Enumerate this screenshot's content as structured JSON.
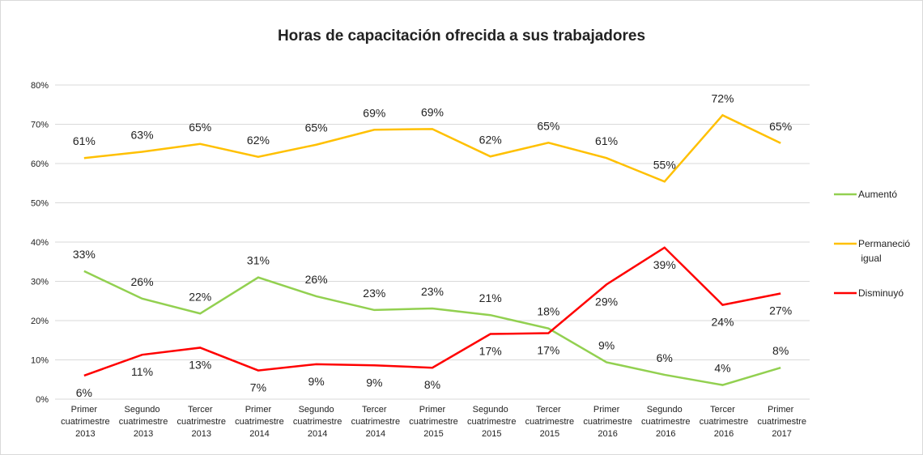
{
  "chart_data": {
    "type": "line",
    "title": "Horas de capacitación ofrecida a sus trabajadores",
    "categories": [
      "Primer cuatrimestre 2013",
      "Segundo cuatrimestre 2013",
      "Tercer cuatrimestre 2013",
      "Primer cuatrimestre 2014",
      "Segundo cuatrimestre 2014",
      "Tercer cuatrimestre 2014",
      "Primer cuatrimestre 2015",
      "Segundo cuatrimestre 2015",
      "Tercer cuatrimestre 2015",
      "Primer cuatrimestre 2016",
      "Segundo cuatrimestre 2016",
      "Tercer cuatrimestre 2016",
      "Primer cuatrimestre 2017"
    ],
    "series": [
      {
        "name": "Aumentó",
        "color": "#92d050",
        "values": [
          32.6,
          25.6,
          21.8,
          31,
          26.2,
          22.7,
          23.1,
          21.4,
          18,
          9.4,
          6.2,
          3.6,
          8
        ],
        "value_labels": [
          "33%",
          "26%",
          "22%",
          "31%",
          "26%",
          "23%",
          "23%",
          "21%",
          "18%",
          "9%",
          "6%",
          "4%",
          "8%"
        ]
      },
      {
        "name": "Permaneció igual",
        "color": "#ffc000",
        "values": [
          61.4,
          63,
          65,
          61.7,
          64.8,
          68.6,
          68.8,
          61.8,
          65.3,
          61.4,
          55.4,
          72.3,
          65.2
        ],
        "value_labels": [
          "61%",
          "63%",
          "65%",
          "62%",
          "65%",
          "69%",
          "69%",
          "62%",
          "65%",
          "61%",
          "55%",
          "72%",
          "65%"
        ]
      },
      {
        "name": "Disminuyó",
        "color": "#ff0000",
        "values": [
          6,
          11.3,
          13.1,
          7.3,
          8.9,
          8.6,
          8,
          16.6,
          16.8,
          29.2,
          38.6,
          24,
          26.9
        ],
        "value_labels": [
          "6%",
          "11%",
          "13%",
          "7%",
          "9%",
          "9%",
          "8%",
          "17%",
          "17%",
          "29%",
          "39%",
          "24%",
          "27%"
        ]
      }
    ],
    "ylim": [
      0,
      80
    ],
    "yticks": [
      {
        "value": 0,
        "label": "0%"
      },
      {
        "value": 10,
        "label": "10%"
      },
      {
        "value": 20,
        "label": "20%"
      },
      {
        "value": 30,
        "label": "30%"
      },
      {
        "value": 40,
        "label": "40%"
      },
      {
        "value": 50,
        "label": "50%"
      },
      {
        "value": 60,
        "label": "60%"
      },
      {
        "value": 70,
        "label": "70%"
      },
      {
        "value": 80,
        "label": "80%"
      }
    ],
    "grid": true,
    "legend": "right"
  }
}
